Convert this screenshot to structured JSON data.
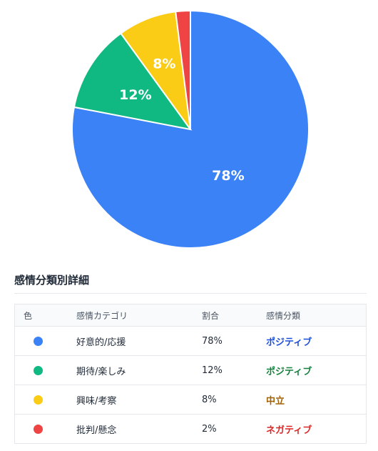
{
  "chart_data": {
    "type": "pie",
    "slices": [
      {
        "label": "好意的/応援",
        "value": 78,
        "color": "#3b82f6"
      },
      {
        "label": "期待/楽しみ",
        "value": 12,
        "color": "#10b981"
      },
      {
        "label": "興味/考察",
        "value": 8,
        "color": "#facc15"
      },
      {
        "label": "批判/懸念",
        "value": 2,
        "color": "#ef4444"
      }
    ],
    "data_labels": [
      "78%",
      "12%",
      "8%",
      ""
    ],
    "start": "12 o'clock",
    "direction": "clockwise"
  },
  "details": {
    "title": "感情分類別詳細",
    "headers": {
      "color": "色",
      "category": "感情カテゴリ",
      "ratio": "割合",
      "sentiment": "感情分類"
    },
    "rows": [
      {
        "category": "好意的/応援",
        "ratio": "78%",
        "sentiment": "ポジティブ",
        "dot_color": "#3b82f6",
        "sentiment_color": "#1d4ed8"
      },
      {
        "category": "期待/楽しみ",
        "ratio": "12%",
        "sentiment": "ポジティブ",
        "dot_color": "#10b981",
        "sentiment_color": "#15803d"
      },
      {
        "category": "興味/考察",
        "ratio": "8%",
        "sentiment": "中立",
        "dot_color": "#facc15",
        "sentiment_color": "#a16207"
      },
      {
        "category": "批判/懸念",
        "ratio": "2%",
        "sentiment": "ネガティブ",
        "dot_color": "#ef4444",
        "sentiment_color": "#dc2626"
      }
    ]
  }
}
